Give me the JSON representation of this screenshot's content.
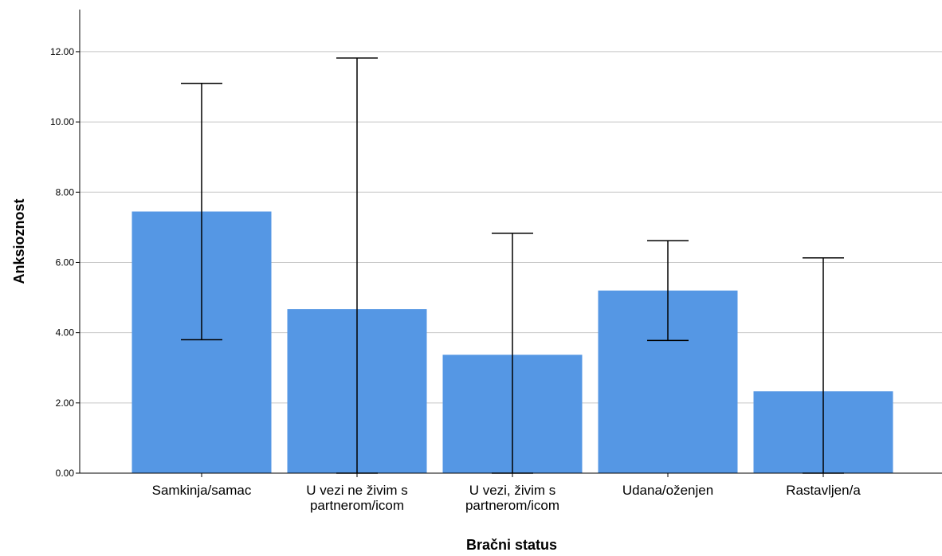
{
  "chart_data": {
    "type": "bar",
    "xlabel": "Bračni status",
    "ylabel": "Anksioznost",
    "categories": [
      [
        "Samkinja/samac"
      ],
      [
        "U vezi ne živim s",
        "partnerom/icom"
      ],
      [
        "U vezi, živim s",
        "partnerom/icom"
      ],
      [
        "Udana/oženjen"
      ],
      [
        "Rastavljen/a"
      ]
    ],
    "values": [
      7.45,
      4.67,
      3.37,
      5.2,
      2.33
    ],
    "error_low": [
      3.8,
      0.0,
      0.0,
      3.78,
      0.0
    ],
    "error_high": [
      11.1,
      11.82,
      6.83,
      6.62,
      6.13
    ],
    "ylim": [
      0,
      13.2
    ],
    "yticks": [
      0,
      2,
      4,
      6,
      8,
      10,
      12
    ],
    "ytick_labels": [
      "0.00",
      "2.00",
      "4.00",
      "6.00",
      "8.00",
      "10.00",
      "12.00"
    ],
    "grid": true,
    "bar_color": "#5597e4",
    "gridline_color": "#c8c8c8"
  }
}
